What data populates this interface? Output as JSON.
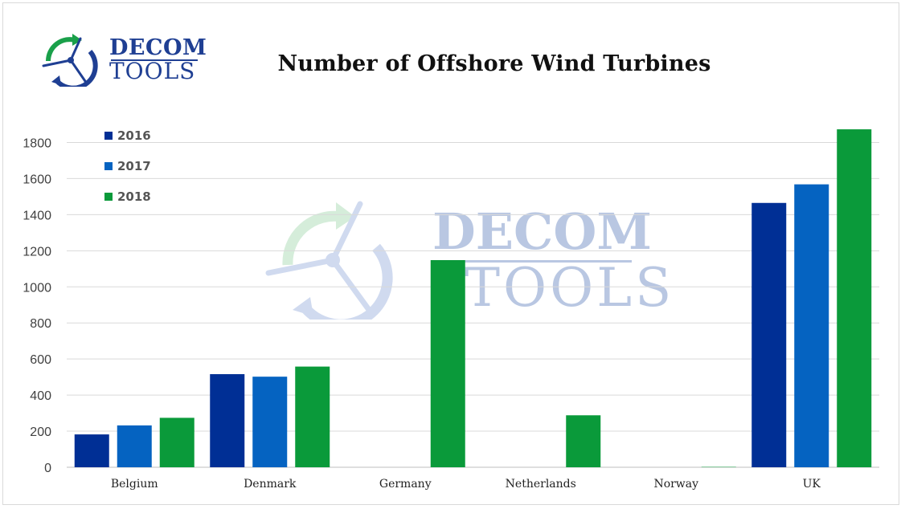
{
  "logo": {
    "word_top": "DECOM",
    "word_bottom": "TOOLS"
  },
  "watermark": {
    "word_top": "DECOM",
    "word_bottom": "TOOLS"
  },
  "colors": {
    "2016": "#002f95",
    "2017": "#0563c1",
    "2018": "#0a9a3a",
    "logo_blue": "#1f3f93",
    "logo_green": "#1aa04a",
    "grid": "#d9d9d9"
  },
  "chart_data": {
    "type": "bar",
    "title": "Number of Offshore Wind Turbines",
    "xlabel": "",
    "ylabel": "",
    "categories": [
      "Belgium",
      "Denmark",
      "Germany",
      "Netherlands",
      "Norway",
      "UK"
    ],
    "series": [
      {
        "name": "2016",
        "values": [
          182,
          516,
          0,
          0,
          0,
          1465
        ]
      },
      {
        "name": "2017",
        "values": [
          232,
          502,
          0,
          0,
          0,
          1568
        ]
      },
      {
        "name": "2018",
        "values": [
          274,
          558,
          1148,
          288,
          2,
          1873
        ]
      }
    ],
    "ylim": [
      0,
      1900
    ],
    "yticks": [
      0,
      200,
      400,
      600,
      800,
      1000,
      1200,
      1400,
      1600,
      1800
    ],
    "grid": true,
    "legend_position": "top-left"
  }
}
